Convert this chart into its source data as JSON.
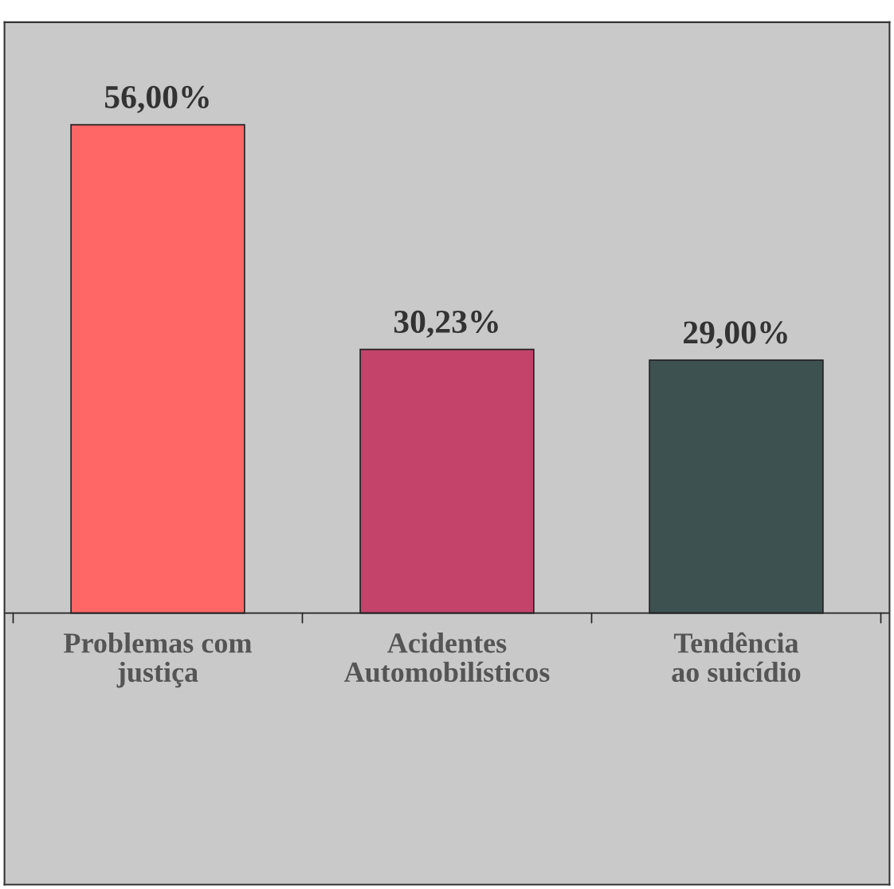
{
  "chart_data": {
    "type": "bar",
    "categories": [
      "Problemas com\njustiça",
      "Acidentes\nAutomobilísticos",
      "Tendência\nao suicídio"
    ],
    "values": [
      56.0,
      30.23,
      29.0
    ],
    "colors": [
      "#ff6666",
      "#c4436b",
      "#3d5150"
    ],
    "value_labels": [
      "56,00%",
      "30,23%",
      "29,00%"
    ]
  }
}
